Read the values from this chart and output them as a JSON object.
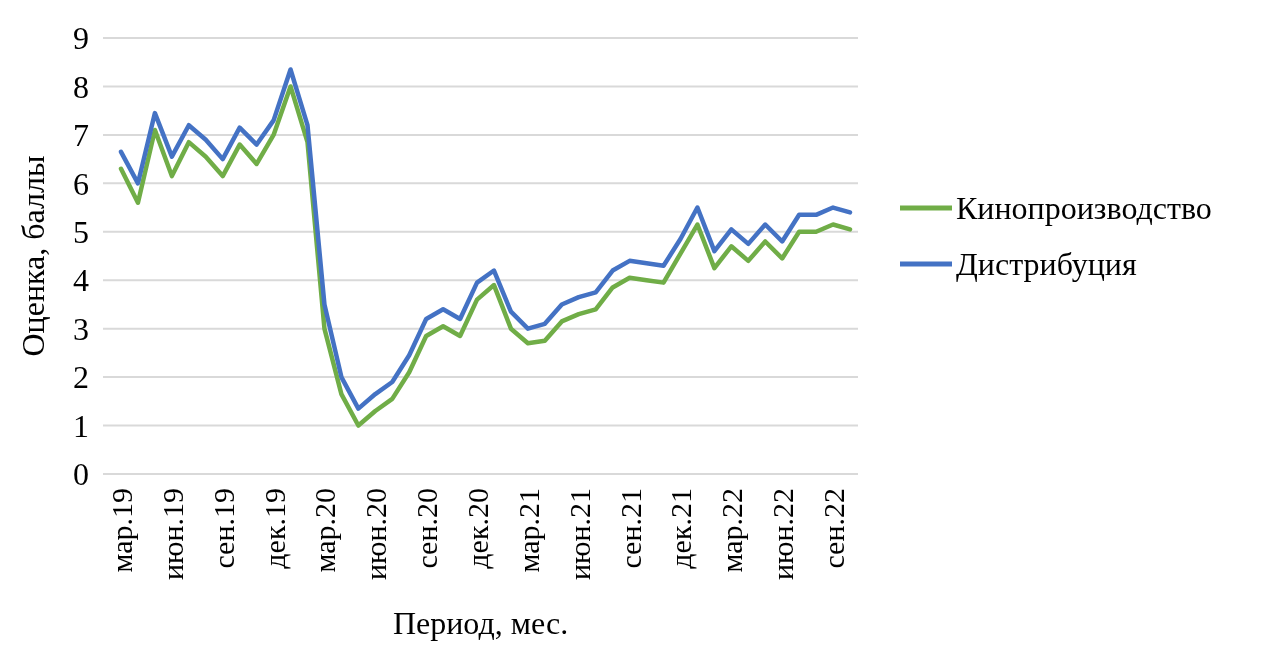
{
  "chart_data": {
    "type": "line",
    "xlabel": "Период, мес.",
    "ylabel": "Оценка, баллы",
    "categories": [
      "мар.19",
      null,
      null,
      "июн.19",
      null,
      null,
      "сен.19",
      null,
      null,
      "дек.19",
      null,
      null,
      "мар.20",
      null,
      null,
      "июн.20",
      null,
      null,
      "сен.20",
      null,
      null,
      "дек.20",
      null,
      null,
      "мар.21",
      null,
      null,
      "июн.21",
      null,
      null,
      "сен.21",
      null,
      null,
      "дек.21",
      null,
      null,
      "мар.22",
      null,
      null,
      "июн.22",
      null,
      null,
      "сен.22",
      null
    ],
    "series": [
      {
        "name": "Кинопроизводство",
        "color": "#70ad47",
        "values": [
          6.3,
          5.6,
          7.1,
          6.15,
          6.85,
          6.55,
          6.15,
          6.8,
          6.4,
          7.0,
          8.0,
          6.85,
          3.0,
          1.65,
          1.0,
          1.3,
          1.55,
          2.1,
          2.85,
          3.05,
          2.85,
          3.6,
          3.9,
          3.0,
          2.7,
          2.75,
          3.15,
          3.3,
          3.4,
          3.85,
          4.05,
          4.0,
          3.95,
          4.55,
          5.15,
          4.25,
          4.7,
          4.4,
          4.8,
          4.45,
          5.0,
          5.0,
          5.15,
          5.05
        ]
      },
      {
        "name": "Дистрибуция",
        "color": "#4472c4",
        "values": [
          6.65,
          6.0,
          7.45,
          6.55,
          7.2,
          6.9,
          6.5,
          7.15,
          6.8,
          7.3,
          8.35,
          7.2,
          3.5,
          2.0,
          1.35,
          1.65,
          1.9,
          2.45,
          3.2,
          3.4,
          3.2,
          3.95,
          4.2,
          3.35,
          3.0,
          3.1,
          3.5,
          3.65,
          3.75,
          4.2,
          4.4,
          4.35,
          4.3,
          4.85,
          5.5,
          4.6,
          5.05,
          4.75,
          5.15,
          4.8,
          5.35,
          5.35,
          5.5,
          5.4
        ]
      }
    ],
    "ylim": [
      0,
      9
    ],
    "yticks": [
      0,
      1,
      2,
      3,
      4,
      5,
      6,
      7,
      8,
      9
    ],
    "grid": "y",
    "legend": "right",
    "marker": "none",
    "line_style": "solid"
  }
}
